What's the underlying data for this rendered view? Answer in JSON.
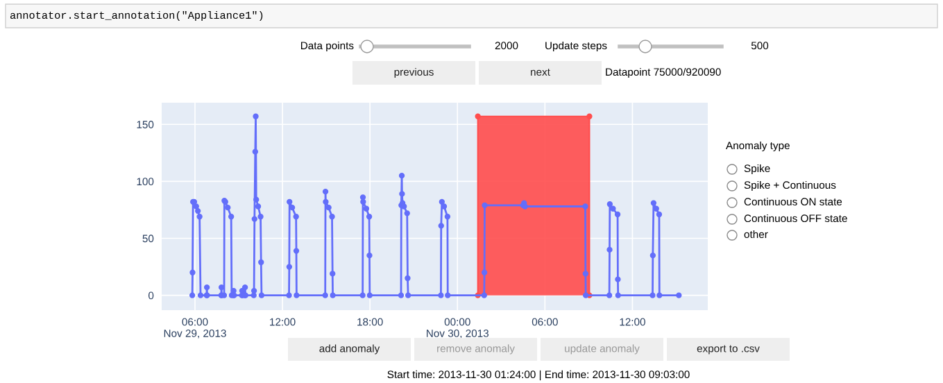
{
  "chart_data": {
    "type": "line",
    "xlim": [
      "2013-11-29T03:43",
      "2013-11-30T17:10"
    ],
    "xticks": [
      {
        "value": "2013-11-29T06:00",
        "label": "06:00\nNov 29, 2013"
      },
      {
        "value": "2013-11-29T12:00",
        "label": "12:00"
      },
      {
        "value": "2013-11-29T18:00",
        "label": "18:00"
      },
      {
        "value": "2013-11-30T00:00",
        "label": "00:00\nNov 30, 2013"
      },
      {
        "value": "2013-11-30T06:00",
        "label": "06:00"
      },
      {
        "value": "2013-11-30T12:00",
        "label": "12:00"
      }
    ],
    "ylim": [
      -13,
      169
    ],
    "yticks": [
      0,
      50,
      100,
      150
    ],
    "grid": true,
    "marker": "circle",
    "line_style": "solid",
    "series": [
      {
        "color": "#636efa",
        "x": [
          "2013-11-29T05:49",
          "2013-11-29T05:50",
          "2013-11-29T05:52",
          "2013-11-29T05:57",
          "2013-11-29T06:05",
          "2013-11-29T06:12",
          "2013-11-29T06:19",
          "2013-11-29T06:23",
          "2013-11-29T06:48",
          "2013-11-29T06:49",
          "2013-11-29T06:50",
          "2013-11-29T07:48",
          "2013-11-29T07:49",
          "2013-11-29T07:50",
          "2013-11-29T08:00",
          "2013-11-29T08:01",
          "2013-11-29T08:05",
          "2013-11-29T08:15",
          "2013-11-29T08:29",
          "2013-11-29T08:31",
          "2013-11-29T08:38",
          "2013-11-29T08:39",
          "2013-11-29T08:41",
          "2013-11-29T09:13",
          "2013-11-29T09:14",
          "2013-11-29T09:16",
          "2013-11-29T09:25",
          "2013-11-29T09:26",
          "2013-11-29T09:28",
          "2013-11-29T10:02",
          "2013-11-29T10:03",
          "2013-11-29T10:05",
          "2013-11-29T10:08",
          "2013-11-29T10:10",
          "2013-11-29T10:12",
          "2013-11-29T10:20",
          "2013-11-29T10:30",
          "2013-11-29T10:32",
          "2013-11-29T10:34",
          "2013-11-29T12:27",
          "2013-11-29T12:28",
          "2013-11-29T12:29",
          "2013-11-29T12:40",
          "2013-11-29T12:56",
          "2013-11-29T12:57",
          "2013-11-29T12:58",
          "2013-11-29T14:56",
          "2013-11-29T14:57",
          "2013-11-29T14:58",
          "2013-11-29T15:10",
          "2013-11-29T15:24",
          "2013-11-29T15:26",
          "2013-11-29T15:27",
          "2013-11-29T17:30",
          "2013-11-29T17:31",
          "2013-11-29T17:32",
          "2013-11-29T17:45",
          "2013-11-29T17:57",
          "2013-11-29T17:58",
          "2013-11-29T17:59",
          "2013-11-29T20:08",
          "2013-11-29T20:09",
          "2013-11-29T20:11",
          "2013-11-29T20:12",
          "2013-11-29T20:14",
          "2013-11-29T20:20",
          "2013-11-29T20:33",
          "2013-11-29T20:35",
          "2013-11-29T20:37",
          "2013-11-29T22:52",
          "2013-11-29T22:53",
          "2013-11-29T22:56",
          "2013-11-29T23:05",
          "2013-11-29T23:19",
          "2013-11-29T23:20",
          "2013-11-30T01:50",
          "2013-11-30T01:51",
          "2013-11-30T01:52",
          "2013-11-30T04:30",
          "2013-11-30T04:34",
          "2013-11-30T04:38",
          "2013-11-30T08:46",
          "2013-11-30T08:47",
          "2013-11-30T08:48",
          "2013-11-30T10:25",
          "2013-11-30T10:26",
          "2013-11-30T10:27",
          "2013-11-30T10:40",
          "2013-11-30T10:59",
          "2013-11-30T11:00",
          "2013-11-30T11:01",
          "2013-11-30T13:23",
          "2013-11-30T13:24",
          "2013-11-30T13:27",
          "2013-11-30T13:38",
          "2013-11-30T13:50",
          "2013-11-30T13:51",
          "2013-11-30T15:11"
        ],
        "values": [
          0,
          20,
          82,
          82,
          78,
          74,
          69,
          0,
          0,
          7,
          0,
          0,
          7,
          0,
          0,
          83,
          82,
          77,
          69,
          0,
          0,
          4,
          0,
          0,
          4,
          0,
          0,
          7,
          0,
          0,
          4,
          67,
          126,
          157,
          84,
          78,
          69,
          29,
          0,
          0,
          25,
          82,
          77,
          69,
          39,
          0,
          0,
          91,
          82,
          77,
          69,
          19,
          0,
          0,
          86,
          82,
          76,
          69,
          35,
          0,
          0,
          79,
          105,
          89,
          81,
          78,
          72,
          15,
          0,
          0,
          61,
          82,
          78,
          69,
          0,
          0,
          20,
          79,
          79,
          81,
          78,
          78,
          19,
          0,
          0,
          40,
          80,
          76,
          71,
          14,
          0,
          0,
          35,
          81,
          76,
          71,
          0,
          0
        ]
      },
      {
        "type": "area",
        "color": "#ff4d4d",
        "x": [
          "2013-11-30T01:24",
          "2013-11-30T01:24",
          "2013-11-30T09:03",
          "2013-11-30T09:03"
        ],
        "values": [
          0,
          157,
          157,
          0
        ]
      }
    ],
    "annotations": [
      "annotator.start_annotation(\"Appliance1\")",
      "Data points",
      "2000",
      "Update steps",
      "500",
      "previous",
      "next",
      "Datapoint 75000/920090",
      "Anomaly type",
      "Spike",
      "Spike + Continuous",
      "Continuous ON state",
      "Continuous OFF state",
      "other",
      "add anomaly",
      "remove anomaly",
      "update anomaly",
      "export to .csv",
      "Start time: 2013-11-30 01:24:00 | End time: 2013-11-30 09:03:00"
    ]
  }
}
